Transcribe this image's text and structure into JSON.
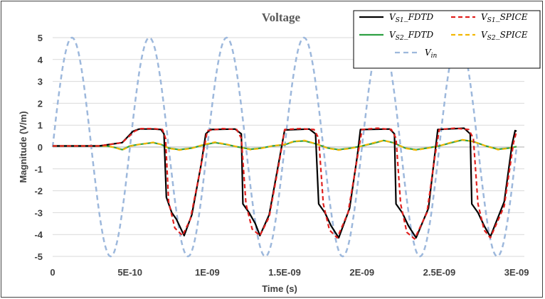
{
  "chart_data": {
    "type": "line",
    "title": "Voltage",
    "xlabel": "Time (s)",
    "ylabel": "Magnitude (V/m)",
    "xlim": [
      0,
      3.05e-09
    ],
    "ylim": [
      -5,
      5
    ],
    "grid": "horizontal",
    "legend_position": "top-right",
    "x_tick_labels": [
      "0",
      "5E-10",
      "1E-09",
      "1.5E-09",
      "2E-09",
      "2.5E-09",
      "3E-09"
    ],
    "x_ticks": [
      0,
      5e-10,
      1e-09,
      1.5e-09,
      2e-09,
      2.5e-09,
      3e-09
    ],
    "y_ticks": [
      5,
      4,
      3,
      2,
      1,
      0,
      -1,
      -2,
      -3,
      -4,
      -5
    ],
    "legend": [
      {
        "base": "V",
        "sub": "S1",
        "suffix": "_FDTD",
        "series": "vs1_fdtd"
      },
      {
        "base": "V",
        "sub": "S1",
        "suffix": "_SPICE",
        "series": "vs1_spice"
      },
      {
        "base": "V",
        "sub": "S2",
        "suffix": "_FDTD",
        "series": "vs2_fdtd"
      },
      {
        "base": "V",
        "sub": "S2",
        "suffix": "_SPICE",
        "series": "vs2_spice"
      },
      {
        "base": "V",
        "sub": "in",
        "suffix": "",
        "series": "vin"
      }
    ],
    "series": [
      {
        "id": "vs1_fdtd",
        "color": "#000000",
        "dash": "",
        "width": 2.2,
        "points": [
          [
            0,
            0.05
          ],
          [
            3e-10,
            0.05
          ],
          [
            4.5e-10,
            0.2
          ],
          [
            5.2e-10,
            0.72
          ],
          [
            5.6e-10,
            0.82
          ],
          [
            6.5e-10,
            0.82
          ],
          [
            7e-10,
            0.8
          ],
          [
            7.2e-10,
            0.6
          ],
          [
            7.35e-10,
            -2.3
          ],
          [
            7.7e-10,
            -3.0
          ],
          [
            8e-10,
            -3.3
          ],
          [
            8.5e-10,
            -4.05
          ],
          [
            9e-10,
            -3.1
          ],
          [
            9.6e-10,
            -0.8
          ],
          [
            9.9e-10,
            0.6
          ],
          [
            1.02e-09,
            0.8
          ],
          [
            1.18e-09,
            0.82
          ],
          [
            1.22e-09,
            0.6
          ],
          [
            1.23e-09,
            -2.6
          ],
          [
            1.27e-09,
            -3.0
          ],
          [
            1.31e-09,
            -3.5
          ],
          [
            1.34e-09,
            -4.05
          ],
          [
            1.4e-09,
            -3.1
          ],
          [
            1.47e-09,
            -0.4
          ],
          [
            1.5e-09,
            0.78
          ],
          [
            1.66e-09,
            0.82
          ],
          [
            1.7e-09,
            0.6
          ],
          [
            1.72e-09,
            -2.6
          ],
          [
            1.76e-09,
            -3.0
          ],
          [
            1.8e-09,
            -3.6
          ],
          [
            1.85e-09,
            -4.15
          ],
          [
            1.92e-09,
            -2.8
          ],
          [
            1.97e-09,
            -0.4
          ],
          [
            1.99e-09,
            0.8
          ],
          [
            2.18e-09,
            0.82
          ],
          [
            2.21e-09,
            0.6
          ],
          [
            2.22e-09,
            -2.6
          ],
          [
            2.26e-09,
            -3.0
          ],
          [
            2.3e-09,
            -3.6
          ],
          [
            2.35e-09,
            -4.15
          ],
          [
            2.43e-09,
            -2.8
          ],
          [
            2.47e-09,
            -0.4
          ],
          [
            2.49e-09,
            0.8
          ],
          [
            2.66e-09,
            0.86
          ],
          [
            2.7e-09,
            0.6
          ],
          [
            2.71e-09,
            -2.6
          ],
          [
            2.75e-09,
            -3.0
          ],
          [
            2.79e-09,
            -3.6
          ],
          [
            2.83e-09,
            -4.1
          ],
          [
            2.92e-09,
            -2.5
          ],
          [
            2.97e-09,
            0.1
          ],
          [
            2.99e-09,
            0.75
          ],
          [
            3e-09,
            0.72
          ]
        ]
      },
      {
        "id": "vs1_spice",
        "color": "#e0201e",
        "dash": "6,4",
        "width": 2.2,
        "points": [
          [
            0,
            0.05
          ],
          [
            3e-10,
            0.05
          ],
          [
            4.5e-10,
            0.2
          ],
          [
            5.3e-10,
            0.72
          ],
          [
            5.7e-10,
            0.84
          ],
          [
            6.5e-10,
            0.84
          ],
          [
            7.1e-10,
            0.8
          ],
          [
            7.3e-10,
            0.4
          ],
          [
            7.5e-10,
            -2.5
          ],
          [
            7.9e-10,
            -3.7
          ],
          [
            8.4e-10,
            -4.05
          ],
          [
            8.9e-10,
            -3.3
          ],
          [
            9.5e-10,
            -1.2
          ],
          [
            1e-09,
            0.75
          ],
          [
            1.1e-09,
            0.84
          ],
          [
            1.19e-09,
            0.8
          ],
          [
            1.22e-09,
            0.4
          ],
          [
            1.25e-09,
            -2.6
          ],
          [
            1.29e-09,
            -3.75
          ],
          [
            1.34e-09,
            -4.05
          ],
          [
            1.4e-09,
            -3.2
          ],
          [
            1.47e-09,
            -0.5
          ],
          [
            1.5e-09,
            0.8
          ],
          [
            1.6e-09,
            0.84
          ],
          [
            1.69e-09,
            0.8
          ],
          [
            1.72e-09,
            0.4
          ],
          [
            1.75e-09,
            -2.6
          ],
          [
            1.79e-09,
            -3.8
          ],
          [
            1.84e-09,
            -4.15
          ],
          [
            1.91e-09,
            -3.0
          ],
          [
            1.97e-09,
            -0.5
          ],
          [
            2e-09,
            0.8
          ],
          [
            2.1e-09,
            0.86
          ],
          [
            2.19e-09,
            0.8
          ],
          [
            2.22e-09,
            0.4
          ],
          [
            2.25e-09,
            -2.6
          ],
          [
            2.29e-09,
            -3.9
          ],
          [
            2.34e-09,
            -4.2
          ],
          [
            2.42e-09,
            -3.0
          ],
          [
            2.47e-09,
            -0.5
          ],
          [
            2.5e-09,
            0.8
          ],
          [
            2.6e-09,
            0.86
          ],
          [
            2.69e-09,
            0.8
          ],
          [
            2.72e-09,
            0.4
          ],
          [
            2.75e-09,
            -2.6
          ],
          [
            2.79e-09,
            -3.8
          ],
          [
            2.83e-09,
            -4.15
          ],
          [
            2.92e-09,
            -2.7
          ],
          [
            2.98e-09,
            0.2
          ],
          [
            3e-09,
            0.72
          ]
        ]
      },
      {
        "id": "vs2_fdtd",
        "color": "#2ea043",
        "dash": "",
        "width": 2.2,
        "points": [
          [
            0,
            0.05
          ],
          [
            3.5e-10,
            0.05
          ],
          [
            4e-10,
            -0.02
          ],
          [
            4.5e-10,
            -0.12
          ],
          [
            5e-10,
            0.05
          ],
          [
            5.6e-10,
            0.12
          ],
          [
            6.5e-10,
            0.2
          ],
          [
            7e-10,
            0.12
          ],
          [
            7.5e-10,
            -0.05
          ],
          [
            8.2e-10,
            -0.12
          ],
          [
            9e-10,
            -0.05
          ],
          [
            9.8e-10,
            0.1
          ],
          [
            1.05e-09,
            0.2
          ],
          [
            1.12e-09,
            0.12
          ],
          [
            1.2e-09,
            0.0
          ],
          [
            1.28e-09,
            -0.1
          ],
          [
            1.35e-09,
            -0.05
          ],
          [
            1.42e-09,
            0.05
          ],
          [
            1.5e-09,
            0.1
          ],
          [
            1.56e-09,
            0.25
          ],
          [
            1.63e-09,
            0.28
          ],
          [
            1.7e-09,
            0.15
          ],
          [
            1.78e-09,
            -0.05
          ],
          [
            1.85e-09,
            -0.12
          ],
          [
            1.93e-09,
            -0.05
          ],
          [
            2e-09,
            0.05
          ],
          [
            2.08e-09,
            0.18
          ],
          [
            2.14e-09,
            0.3
          ],
          [
            2.2e-09,
            0.2
          ],
          [
            2.28e-09,
            -0.05
          ],
          [
            2.35e-09,
            -0.12
          ],
          [
            2.42e-09,
            -0.05
          ],
          [
            2.5e-09,
            0.05
          ],
          [
            2.58e-09,
            0.2
          ],
          [
            2.65e-09,
            0.32
          ],
          [
            2.72e-09,
            0.25
          ],
          [
            2.8e-09,
            0.05
          ],
          [
            2.88e-09,
            -0.1
          ],
          [
            2.95e-09,
            -0.05
          ],
          [
            3e-09,
            0.02
          ]
        ]
      },
      {
        "id": "vs2_spice",
        "color": "#f2b705",
        "dash": "6,4",
        "width": 2.2,
        "points": [
          [
            0,
            0.05
          ],
          [
            3.5e-10,
            0.05
          ],
          [
            4e-10,
            -0.02
          ],
          [
            4.5e-10,
            -0.14
          ],
          [
            5e-10,
            0.04
          ],
          [
            5.6e-10,
            0.12
          ],
          [
            6.5e-10,
            0.21
          ],
          [
            7e-10,
            0.12
          ],
          [
            7.5e-10,
            -0.06
          ],
          [
            8.2e-10,
            -0.14
          ],
          [
            9e-10,
            -0.06
          ],
          [
            9.8e-10,
            0.12
          ],
          [
            1.05e-09,
            0.22
          ],
          [
            1.12e-09,
            0.13
          ],
          [
            1.2e-09,
            0.0
          ],
          [
            1.28e-09,
            -0.12
          ],
          [
            1.35e-09,
            -0.06
          ],
          [
            1.42e-09,
            0.05
          ],
          [
            1.5e-09,
            0.12
          ],
          [
            1.56e-09,
            0.26
          ],
          [
            1.63e-09,
            0.3
          ],
          [
            1.7e-09,
            0.15
          ],
          [
            1.78e-09,
            -0.06
          ],
          [
            1.85e-09,
            -0.14
          ],
          [
            1.93e-09,
            -0.06
          ],
          [
            2e-09,
            0.05
          ],
          [
            2.08e-09,
            0.2
          ],
          [
            2.14e-09,
            0.3
          ],
          [
            2.2e-09,
            0.2
          ],
          [
            2.28e-09,
            -0.06
          ],
          [
            2.35e-09,
            -0.14
          ],
          [
            2.42e-09,
            -0.06
          ],
          [
            2.5e-09,
            0.05
          ],
          [
            2.58e-09,
            0.22
          ],
          [
            2.65e-09,
            0.33
          ],
          [
            2.72e-09,
            0.25
          ],
          [
            2.8e-09,
            0.05
          ],
          [
            2.88e-09,
            -0.12
          ],
          [
            2.95e-09,
            -0.06
          ],
          [
            3e-09,
            0.02
          ]
        ]
      },
      {
        "id": "vin",
        "color": "#9db8dc",
        "dash": "7,5",
        "width": 2.5,
        "generator": {
          "kind": "sine",
          "amplitude": 5,
          "frequency": 2000000000.0,
          "phase_deg": 0,
          "x_start": 0,
          "x_end": 3e-09
        }
      }
    ]
  }
}
